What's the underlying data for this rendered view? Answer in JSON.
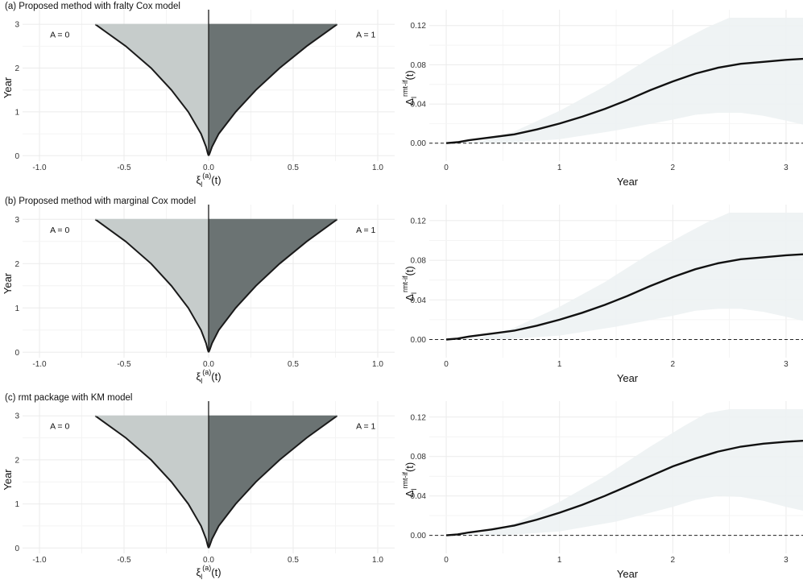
{
  "chart_data": [
    {
      "type": "area",
      "panel": "left",
      "title": "(a) Proposed method with fralty Cox model",
      "ylabel": "Year",
      "xlabel": {
        "main": "ξ",
        "sub": "l",
        "sup": "(a)",
        "tail": "(t)"
      },
      "xlim": [
        -1.1,
        1.1
      ],
      "ylim": [
        -0.05,
        3.15
      ],
      "xticks": [
        -1.0,
        -0.5,
        0.0,
        0.5,
        1.0
      ],
      "xtick_labels": [
        "-1.0",
        "-0.5",
        "0.0",
        "0.5",
        "1.0"
      ],
      "yticks": [
        0,
        1,
        2,
        3
      ],
      "ytick_labels": [
        "0",
        "1",
        "2",
        "3"
      ],
      "groups": [
        {
          "label": "A = 0",
          "color": "#c6cccb",
          "side": "left"
        },
        {
          "label": "A = 1",
          "color": "#6b7373",
          "side": "right"
        }
      ],
      "series": [
        {
          "name": "A = 0",
          "y": [
            0,
            0.05,
            0.2,
            0.5,
            1.0,
            1.5,
            2.0,
            2.5,
            3.0
          ],
          "x": [
            0,
            -0.005,
            -0.015,
            -0.045,
            -0.12,
            -0.22,
            -0.34,
            -0.49,
            -0.67
          ]
        },
        {
          "name": "A = 1",
          "y": [
            0,
            0.05,
            0.2,
            0.5,
            1.0,
            1.5,
            2.0,
            2.5,
            3.0
          ],
          "x": [
            0,
            0.006,
            0.02,
            0.06,
            0.16,
            0.28,
            0.42,
            0.58,
            0.76
          ]
        }
      ]
    },
    {
      "type": "line",
      "panel": "right",
      "xlabel": "Year",
      "ylabel": {
        "main": "Δ",
        "sub": "l",
        "sup": "rmt-if",
        "tail": "(t)"
      },
      "xlim": [
        -0.15,
        3.15
      ],
      "ylim": [
        -0.015,
        0.128
      ],
      "xticks": [
        0,
        1,
        2,
        3
      ],
      "xtick_labels": [
        "0",
        "1",
        "2",
        "3"
      ],
      "yticks": [
        0,
        0.04,
        0.08,
        0.12
      ],
      "ytick_labels": [
        "0.00",
        "0.04",
        "0.08",
        "0.12"
      ],
      "reference_line": 0,
      "series": [
        {
          "name": "estimate",
          "x": [
            0,
            0.1,
            0.2,
            0.4,
            0.6,
            0.8,
            1.0,
            1.2,
            1.4,
            1.6,
            1.8,
            2.0,
            2.2,
            2.4,
            2.6,
            2.8,
            3.0,
            3.15
          ],
          "y": [
            0,
            0.001,
            0.003,
            0.006,
            0.009,
            0.014,
            0.02,
            0.027,
            0.035,
            0.044,
            0.054,
            0.063,
            0.071,
            0.077,
            0.081,
            0.083,
            0.085,
            0.086
          ]
        },
        {
          "name": "lower",
          "x": [
            0,
            0.5,
            1.0,
            1.5,
            2.0,
            2.2,
            2.4,
            2.6,
            2.8,
            3.0,
            3.15
          ],
          "y": [
            0,
            0,
            0.004,
            0.013,
            0.024,
            0.029,
            0.031,
            0.031,
            0.028,
            0.023,
            0.019
          ]
        },
        {
          "name": "upper",
          "x": [
            0,
            0.3,
            0.6,
            1.0,
            1.4,
            1.8,
            2.1,
            2.3,
            2.5,
            2.8,
            3.15
          ],
          "y": [
            0,
            0.002,
            0.012,
            0.033,
            0.058,
            0.087,
            0.106,
            0.118,
            0.128,
            0.128,
            0.128
          ]
        }
      ]
    },
    {
      "type": "area",
      "panel": "left",
      "title": "(b) Proposed method with marginal Cox model",
      "ylabel": "Year",
      "xlabel": {
        "main": "ξ",
        "sub": "l",
        "sup": "(a)",
        "tail": "(t)"
      },
      "xlim": [
        -1.1,
        1.1
      ],
      "ylim": [
        -0.05,
        3.15
      ],
      "xticks": [
        -1.0,
        -0.5,
        0.0,
        0.5,
        1.0
      ],
      "xtick_labels": [
        "-1.0",
        "-0.5",
        "0.0",
        "0.5",
        "1.0"
      ],
      "yticks": [
        0,
        1,
        2,
        3
      ],
      "ytick_labels": [
        "0",
        "1",
        "2",
        "3"
      ],
      "groups": [
        {
          "label": "A = 0",
          "color": "#c6cccb",
          "side": "left"
        },
        {
          "label": "A = 1",
          "color": "#6b7373",
          "side": "right"
        }
      ],
      "series": [
        {
          "name": "A = 0",
          "y": [
            0,
            0.05,
            0.2,
            0.5,
            1.0,
            1.5,
            2.0,
            2.5,
            3.0
          ],
          "x": [
            0,
            -0.005,
            -0.015,
            -0.045,
            -0.12,
            -0.22,
            -0.34,
            -0.49,
            -0.67
          ]
        },
        {
          "name": "A = 1",
          "y": [
            0,
            0.05,
            0.2,
            0.5,
            1.0,
            1.5,
            2.0,
            2.5,
            3.0
          ],
          "x": [
            0,
            0.006,
            0.02,
            0.06,
            0.16,
            0.28,
            0.42,
            0.58,
            0.76
          ]
        }
      ]
    },
    {
      "type": "line",
      "panel": "right",
      "xlabel": "Year",
      "ylabel": {
        "main": "Δ",
        "sub": "l",
        "sup": "rmt-if",
        "tail": "(t)"
      },
      "xlim": [
        -0.15,
        3.15
      ],
      "ylim": [
        -0.015,
        0.128
      ],
      "xticks": [
        0,
        1,
        2,
        3
      ],
      "xtick_labels": [
        "0",
        "1",
        "2",
        "3"
      ],
      "yticks": [
        0,
        0.04,
        0.08,
        0.12
      ],
      "ytick_labels": [
        "0.00",
        "0.04",
        "0.08",
        "0.12"
      ],
      "reference_line": 0,
      "series": [
        {
          "name": "estimate",
          "x": [
            0,
            0.1,
            0.2,
            0.4,
            0.6,
            0.8,
            1.0,
            1.2,
            1.4,
            1.6,
            1.8,
            2.0,
            2.2,
            2.4,
            2.6,
            2.8,
            3.0,
            3.15
          ],
          "y": [
            0,
            0.001,
            0.003,
            0.006,
            0.009,
            0.014,
            0.02,
            0.027,
            0.035,
            0.044,
            0.054,
            0.063,
            0.071,
            0.077,
            0.081,
            0.083,
            0.085,
            0.086
          ]
        },
        {
          "name": "lower",
          "x": [
            0,
            0.5,
            1.0,
            1.5,
            2.0,
            2.2,
            2.4,
            2.6,
            2.8,
            3.0,
            3.15
          ],
          "y": [
            0,
            0,
            0.004,
            0.013,
            0.024,
            0.029,
            0.031,
            0.031,
            0.028,
            0.023,
            0.019
          ]
        },
        {
          "name": "upper",
          "x": [
            0,
            0.3,
            0.6,
            1.0,
            1.4,
            1.8,
            2.1,
            2.3,
            2.5,
            2.8,
            3.15
          ],
          "y": [
            0,
            0.002,
            0.012,
            0.033,
            0.058,
            0.087,
            0.106,
            0.118,
            0.128,
            0.128,
            0.128
          ]
        }
      ]
    },
    {
      "type": "area",
      "panel": "left",
      "title": "(c) rmt package with KM model",
      "ylabel": "Year",
      "xlabel": {
        "main": "ξ",
        "sub": "l",
        "sup": "(a)",
        "tail": "(t)"
      },
      "xlim": [
        -1.1,
        1.1
      ],
      "ylim": [
        -0.05,
        3.15
      ],
      "xticks": [
        -1.0,
        -0.5,
        0.0,
        0.5,
        1.0
      ],
      "xtick_labels": [
        "-1.0",
        "-0.5",
        "0.0",
        "0.5",
        "1.0"
      ],
      "yticks": [
        0,
        1,
        2,
        3
      ],
      "ytick_labels": [
        "0",
        "1",
        "2",
        "3"
      ],
      "groups": [
        {
          "label": "A = 0",
          "color": "#c6cccb",
          "side": "left"
        },
        {
          "label": "A = 1",
          "color": "#6b7373",
          "side": "right"
        }
      ],
      "series": [
        {
          "name": "A = 0",
          "y": [
            0,
            0.05,
            0.2,
            0.5,
            1.0,
            1.5,
            2.0,
            2.5,
            3.0
          ],
          "x": [
            0,
            -0.005,
            -0.015,
            -0.045,
            -0.12,
            -0.22,
            -0.34,
            -0.49,
            -0.67
          ]
        },
        {
          "name": "A = 1",
          "y": [
            0,
            0.05,
            0.2,
            0.5,
            1.0,
            1.5,
            2.0,
            2.5,
            3.0
          ],
          "x": [
            0,
            0.006,
            0.02,
            0.06,
            0.16,
            0.28,
            0.42,
            0.58,
            0.76
          ]
        }
      ]
    },
    {
      "type": "line",
      "panel": "right",
      "xlabel": "Year",
      "ylabel": {
        "main": "Δ",
        "sub": "l",
        "sup": "rmt-if",
        "tail": "(t)"
      },
      "xlim": [
        -0.15,
        3.15
      ],
      "ylim": [
        -0.015,
        0.128
      ],
      "xticks": [
        0,
        1,
        2,
        3
      ],
      "xtick_labels": [
        "0",
        "1",
        "2",
        "3"
      ],
      "yticks": [
        0,
        0.04,
        0.08,
        0.12
      ],
      "ytick_labels": [
        "0.00",
        "0.04",
        "0.08",
        "0.12"
      ],
      "reference_line": 0,
      "series": [
        {
          "name": "estimate",
          "x": [
            0,
            0.1,
            0.2,
            0.4,
            0.6,
            0.8,
            1.0,
            1.2,
            1.4,
            1.6,
            1.8,
            2.0,
            2.2,
            2.4,
            2.6,
            2.8,
            3.0,
            3.15
          ],
          "y": [
            0,
            0.001,
            0.003,
            0.006,
            0.01,
            0.016,
            0.023,
            0.031,
            0.04,
            0.05,
            0.06,
            0.07,
            0.078,
            0.085,
            0.09,
            0.093,
            0.095,
            0.096
          ]
        },
        {
          "name": "lower",
          "x": [
            0,
            0.5,
            1.0,
            1.5,
            2.0,
            2.2,
            2.4,
            2.6,
            2.8,
            3.0,
            3.15
          ],
          "y": [
            0,
            0,
            0.004,
            0.014,
            0.029,
            0.036,
            0.04,
            0.039,
            0.035,
            0.029,
            0.025
          ]
        },
        {
          "name": "upper",
          "x": [
            0,
            0.3,
            0.6,
            1.0,
            1.4,
            1.8,
            2.1,
            2.3,
            2.5,
            2.8,
            3.15
          ],
          "y": [
            0,
            0.002,
            0.012,
            0.034,
            0.06,
            0.09,
            0.111,
            0.124,
            0.128,
            0.128,
            0.128
          ]
        }
      ]
    }
  ]
}
